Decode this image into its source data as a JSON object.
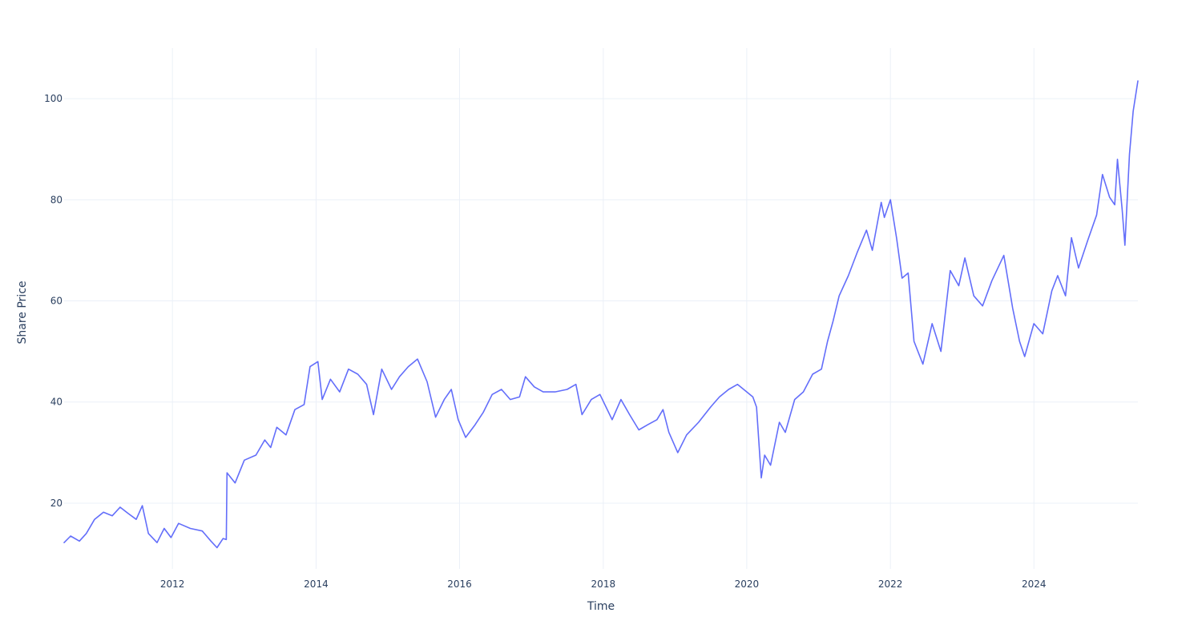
{
  "chart_data": {
    "type": "line",
    "title": "",
    "xlabel": "Time",
    "ylabel": "Share Price",
    "x_range": [
      "2010-06-29",
      "2025-06-13"
    ],
    "ylim": [
      7,
      110
    ],
    "x_ticks": [
      {
        "label": "2012",
        "date": "2012-01-01"
      },
      {
        "label": "2014",
        "date": "2014-01-01"
      },
      {
        "label": "2016",
        "date": "2016-01-01"
      },
      {
        "label": "2018",
        "date": "2018-01-01"
      },
      {
        "label": "2020",
        "date": "2020-01-01"
      },
      {
        "label": "2022",
        "date": "2022-01-01"
      },
      {
        "label": "2024",
        "date": "2024-01-01"
      }
    ],
    "y_ticks": [
      {
        "label": "20",
        "value": 20
      },
      {
        "label": "40",
        "value": 40
      },
      {
        "label": "60",
        "value": 60
      },
      {
        "label": "80",
        "value": 80
      },
      {
        "label": "100",
        "value": 100
      }
    ],
    "grid": true,
    "legend": "none",
    "series": [
      {
        "color": "#636efa",
        "points": [
          [
            "2010-06-29",
            12.2
          ],
          [
            "2010-08-01",
            13.5
          ],
          [
            "2010-09-15",
            12.5
          ],
          [
            "2010-10-20",
            14.0
          ],
          [
            "2010-12-01",
            16.8
          ],
          [
            "2011-01-15",
            18.2
          ],
          [
            "2011-03-01",
            17.5
          ],
          [
            "2011-04-10",
            19.2
          ],
          [
            "2011-05-20",
            18.0
          ],
          [
            "2011-07-01",
            16.8
          ],
          [
            "2011-08-01",
            19.5
          ],
          [
            "2011-09-01",
            14.0
          ],
          [
            "2011-10-15",
            12.2
          ],
          [
            "2011-11-20",
            15.0
          ],
          [
            "2011-12-25",
            13.2
          ],
          [
            "2012-02-01",
            16.0
          ],
          [
            "2012-04-01",
            15.0
          ],
          [
            "2012-06-01",
            14.5
          ],
          [
            "2012-07-15",
            12.5
          ],
          [
            "2012-08-15",
            11.2
          ],
          [
            "2012-09-15",
            13.0
          ],
          [
            "2012-10-01",
            12.8
          ],
          [
            "2012-10-05",
            26.0
          ],
          [
            "2012-11-15",
            24.0
          ],
          [
            "2013-01-01",
            28.5
          ],
          [
            "2013-03-01",
            29.5
          ],
          [
            "2013-04-15",
            32.5
          ],
          [
            "2013-05-15",
            31.0
          ],
          [
            "2013-06-15",
            35.0
          ],
          [
            "2013-08-01",
            33.5
          ],
          [
            "2013-09-15",
            38.5
          ],
          [
            "2013-11-01",
            39.5
          ],
          [
            "2013-12-01",
            47.0
          ],
          [
            "2014-01-10",
            48.0
          ],
          [
            "2014-02-01",
            40.5
          ],
          [
            "2014-03-15",
            44.5
          ],
          [
            "2014-05-01",
            42.0
          ],
          [
            "2014-06-15",
            46.5
          ],
          [
            "2014-08-01",
            45.5
          ],
          [
            "2014-09-15",
            43.5
          ],
          [
            "2014-10-20",
            37.5
          ],
          [
            "2014-12-01",
            46.5
          ],
          [
            "2015-01-20",
            42.5
          ],
          [
            "2015-03-01",
            45.0
          ],
          [
            "2015-04-15",
            47.0
          ],
          [
            "2015-06-01",
            48.5
          ],
          [
            "2015-07-20",
            44.0
          ],
          [
            "2015-09-01",
            37.0
          ],
          [
            "2015-10-15",
            40.5
          ],
          [
            "2015-11-20",
            42.5
          ],
          [
            "2015-12-25",
            36.5
          ],
          [
            "2016-02-01",
            33.0
          ],
          [
            "2016-03-20",
            35.5
          ],
          [
            "2016-05-01",
            38.0
          ],
          [
            "2016-06-15",
            41.5
          ],
          [
            "2016-08-01",
            42.5
          ],
          [
            "2016-09-15",
            40.5
          ],
          [
            "2016-11-01",
            41.0
          ],
          [
            "2016-12-01",
            45.0
          ],
          [
            "2017-01-15",
            43.0
          ],
          [
            "2017-03-01",
            42.0
          ],
          [
            "2017-05-01",
            42.0
          ],
          [
            "2017-07-01",
            42.5
          ],
          [
            "2017-08-15",
            43.5
          ],
          [
            "2017-09-15",
            37.5
          ],
          [
            "2017-11-01",
            40.5
          ],
          [
            "2017-12-15",
            41.5
          ],
          [
            "2018-02-15",
            36.5
          ],
          [
            "2018-04-01",
            40.5
          ],
          [
            "2018-05-15",
            37.5
          ],
          [
            "2018-07-01",
            34.5
          ],
          [
            "2018-08-15",
            35.5
          ],
          [
            "2018-10-01",
            36.5
          ],
          [
            "2018-11-01",
            38.5
          ],
          [
            "2018-12-01",
            34.0
          ],
          [
            "2019-01-15",
            30.0
          ],
          [
            "2019-03-01",
            33.5
          ],
          [
            "2019-05-01",
            36.0
          ],
          [
            "2019-07-01",
            39.0
          ],
          [
            "2019-08-15",
            41.0
          ],
          [
            "2019-10-01",
            42.5
          ],
          [
            "2019-11-15",
            43.5
          ],
          [
            "2020-01-01",
            42.0
          ],
          [
            "2020-02-01",
            41.0
          ],
          [
            "2020-02-20",
            39.0
          ],
          [
            "2020-03-15",
            25.0
          ],
          [
            "2020-04-01",
            29.5
          ],
          [
            "2020-05-01",
            27.5
          ],
          [
            "2020-06-15",
            36.0
          ],
          [
            "2020-07-15",
            34.0
          ],
          [
            "2020-09-01",
            40.5
          ],
          [
            "2020-10-15",
            42.0
          ],
          [
            "2020-12-01",
            45.5
          ],
          [
            "2021-01-15",
            46.5
          ],
          [
            "2021-02-15",
            52.0
          ],
          [
            "2021-03-15",
            56.0
          ],
          [
            "2021-04-15",
            61.0
          ],
          [
            "2021-06-01",
            65.0
          ],
          [
            "2021-07-15",
            69.5
          ],
          [
            "2021-09-01",
            74.0
          ],
          [
            "2021-10-01",
            70.0
          ],
          [
            "2021-11-15",
            79.5
          ],
          [
            "2021-12-01",
            76.5
          ],
          [
            "2022-01-01",
            80.0
          ],
          [
            "2022-02-01",
            72.5
          ],
          [
            "2022-03-01",
            64.5
          ],
          [
            "2022-04-01",
            65.5
          ],
          [
            "2022-05-01",
            52.0
          ],
          [
            "2022-06-15",
            47.5
          ],
          [
            "2022-08-01",
            55.5
          ],
          [
            "2022-09-15",
            50.0
          ],
          [
            "2022-11-01",
            66.0
          ],
          [
            "2022-12-15",
            63.0
          ],
          [
            "2023-01-15",
            68.5
          ],
          [
            "2023-03-01",
            61.0
          ],
          [
            "2023-04-15",
            59.0
          ],
          [
            "2023-06-01",
            64.0
          ],
          [
            "2023-08-01",
            69.0
          ],
          [
            "2023-09-15",
            58.5
          ],
          [
            "2023-10-20",
            52.0
          ],
          [
            "2023-11-15",
            49.0
          ],
          [
            "2024-01-01",
            55.5
          ],
          [
            "2024-02-15",
            53.5
          ],
          [
            "2024-04-01",
            62.0
          ],
          [
            "2024-05-01",
            65.0
          ],
          [
            "2024-06-10",
            61.0
          ],
          [
            "2024-07-10",
            72.5
          ],
          [
            "2024-08-15",
            66.5
          ],
          [
            "2024-10-01",
            72.0
          ],
          [
            "2024-11-15",
            77.0
          ],
          [
            "2024-12-15",
            85.0
          ],
          [
            "2025-01-20",
            80.5
          ],
          [
            "2025-02-15",
            79.0
          ],
          [
            "2025-03-01",
            88.0
          ],
          [
            "2025-03-25",
            78.0
          ],
          [
            "2025-04-08",
            71.0
          ],
          [
            "2025-05-01",
            89.0
          ],
          [
            "2025-05-20",
            97.5
          ],
          [
            "2025-06-13",
            103.5
          ]
        ]
      }
    ]
  }
}
